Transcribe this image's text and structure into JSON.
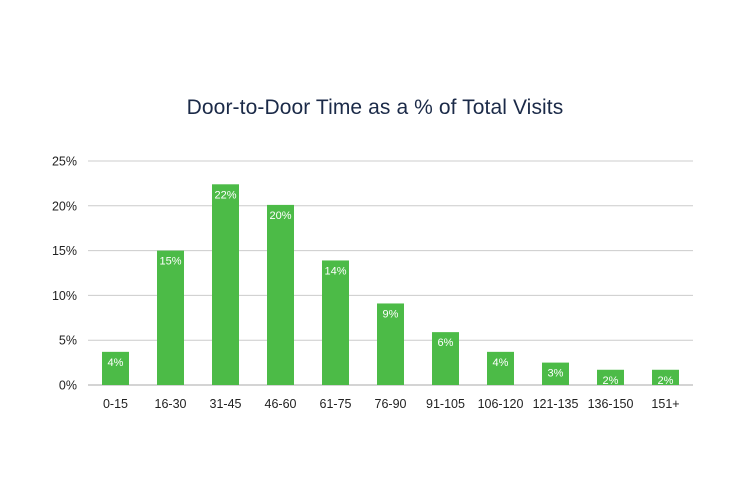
{
  "chart_data": {
    "type": "bar",
    "title": "Door-to-Door Time as a % of Total Visits",
    "categories": [
      "0-15",
      "16-30",
      "31-45",
      "46-60",
      "61-75",
      "76-90",
      "91-105",
      "106-120",
      "121-135",
      "136-150",
      "151+"
    ],
    "values": [
      3.7,
      15.0,
      22.4,
      20.1,
      13.9,
      9.1,
      5.9,
      3.7,
      2.5,
      1.7,
      1.7
    ],
    "data_labels": [
      "4%",
      "15%",
      "22%",
      "20%",
      "14%",
      "9%",
      "6%",
      "4%",
      "3%",
      "2%",
      "2%"
    ],
    "y_ticks": [
      0,
      5,
      10,
      15,
      20,
      25
    ],
    "y_tick_labels": [
      "0%",
      "5%",
      "10%",
      "15%",
      "20%",
      "25%"
    ],
    "ylim": [
      0,
      25
    ],
    "xlabel": "",
    "ylabel": "",
    "grid": true,
    "legend": "none",
    "colors": {
      "bar": "#4cbb47",
      "grid": "#cccccc",
      "title": "#1b2a48"
    }
  }
}
